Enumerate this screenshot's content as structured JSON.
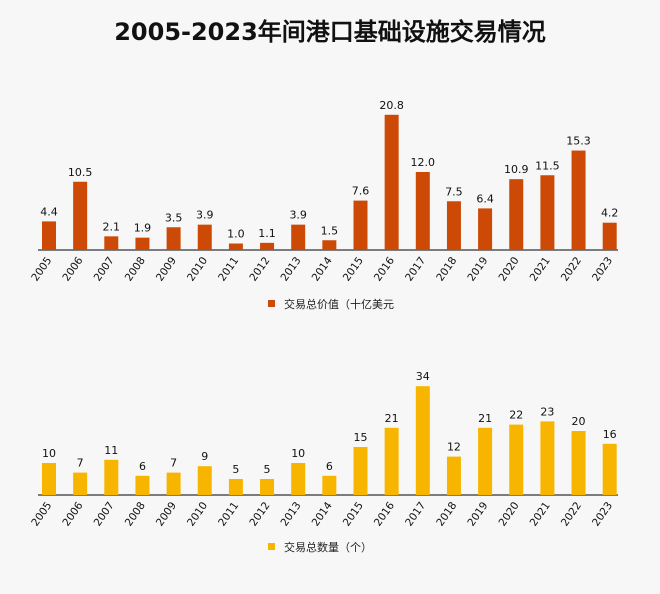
{
  "title": "2005-2023年间港口基础设施交易情况",
  "chart_data": [
    {
      "type": "bar",
      "categories": [
        "2005",
        "2006",
        "2007",
        "2008",
        "2009",
        "2010",
        "2011",
        "2012",
        "2013",
        "2014",
        "2015",
        "2016",
        "2017",
        "2018",
        "2019",
        "2020",
        "2021",
        "2022",
        "2023"
      ],
      "series": [
        {
          "name": "交易总价值（十亿美元",
          "values": [
            4.4,
            10.5,
            2.1,
            1.9,
            3.5,
            3.9,
            1.0,
            1.1,
            3.9,
            1.5,
            7.6,
            20.8,
            12.0,
            7.5,
            6.4,
            10.9,
            11.5,
            15.3,
            4.2
          ],
          "labels": [
            "4.4",
            "10.5",
            "2.1",
            "1.9",
            "3.5",
            "3.9",
            "1.0",
            "1.1",
            "3.9",
            "1.5",
            "7.6",
            "20.8",
            "12.0",
            "7.5",
            "6.4",
            "10.9",
            "11.5",
            "15.3",
            "4.2"
          ],
          "color": "#cc4a06"
        }
      ],
      "legend": "bottom-center",
      "grid": false
    },
    {
      "type": "bar",
      "categories": [
        "2005",
        "2006",
        "2007",
        "2008",
        "2009",
        "2010",
        "2011",
        "2012",
        "2013",
        "2014",
        "2015",
        "2016",
        "2017",
        "2018",
        "2019",
        "2020",
        "2021",
        "2022",
        "2023"
      ],
      "series": [
        {
          "name": "交易总数量（个）",
          "values": [
            10,
            7,
            11,
            6,
            7,
            9,
            5,
            5,
            10,
            6,
            15,
            21,
            34,
            12,
            21,
            22,
            23,
            20,
            16
          ],
          "labels": [
            "10",
            "7",
            "11",
            "6",
            "7",
            "9",
            "5",
            "5",
            "10",
            "6",
            "15",
            "21",
            "34",
            "12",
            "21",
            "22",
            "23",
            "20",
            "16"
          ],
          "color": "#f7b500"
        }
      ],
      "legend": "bottom-center",
      "grid": false
    }
  ]
}
